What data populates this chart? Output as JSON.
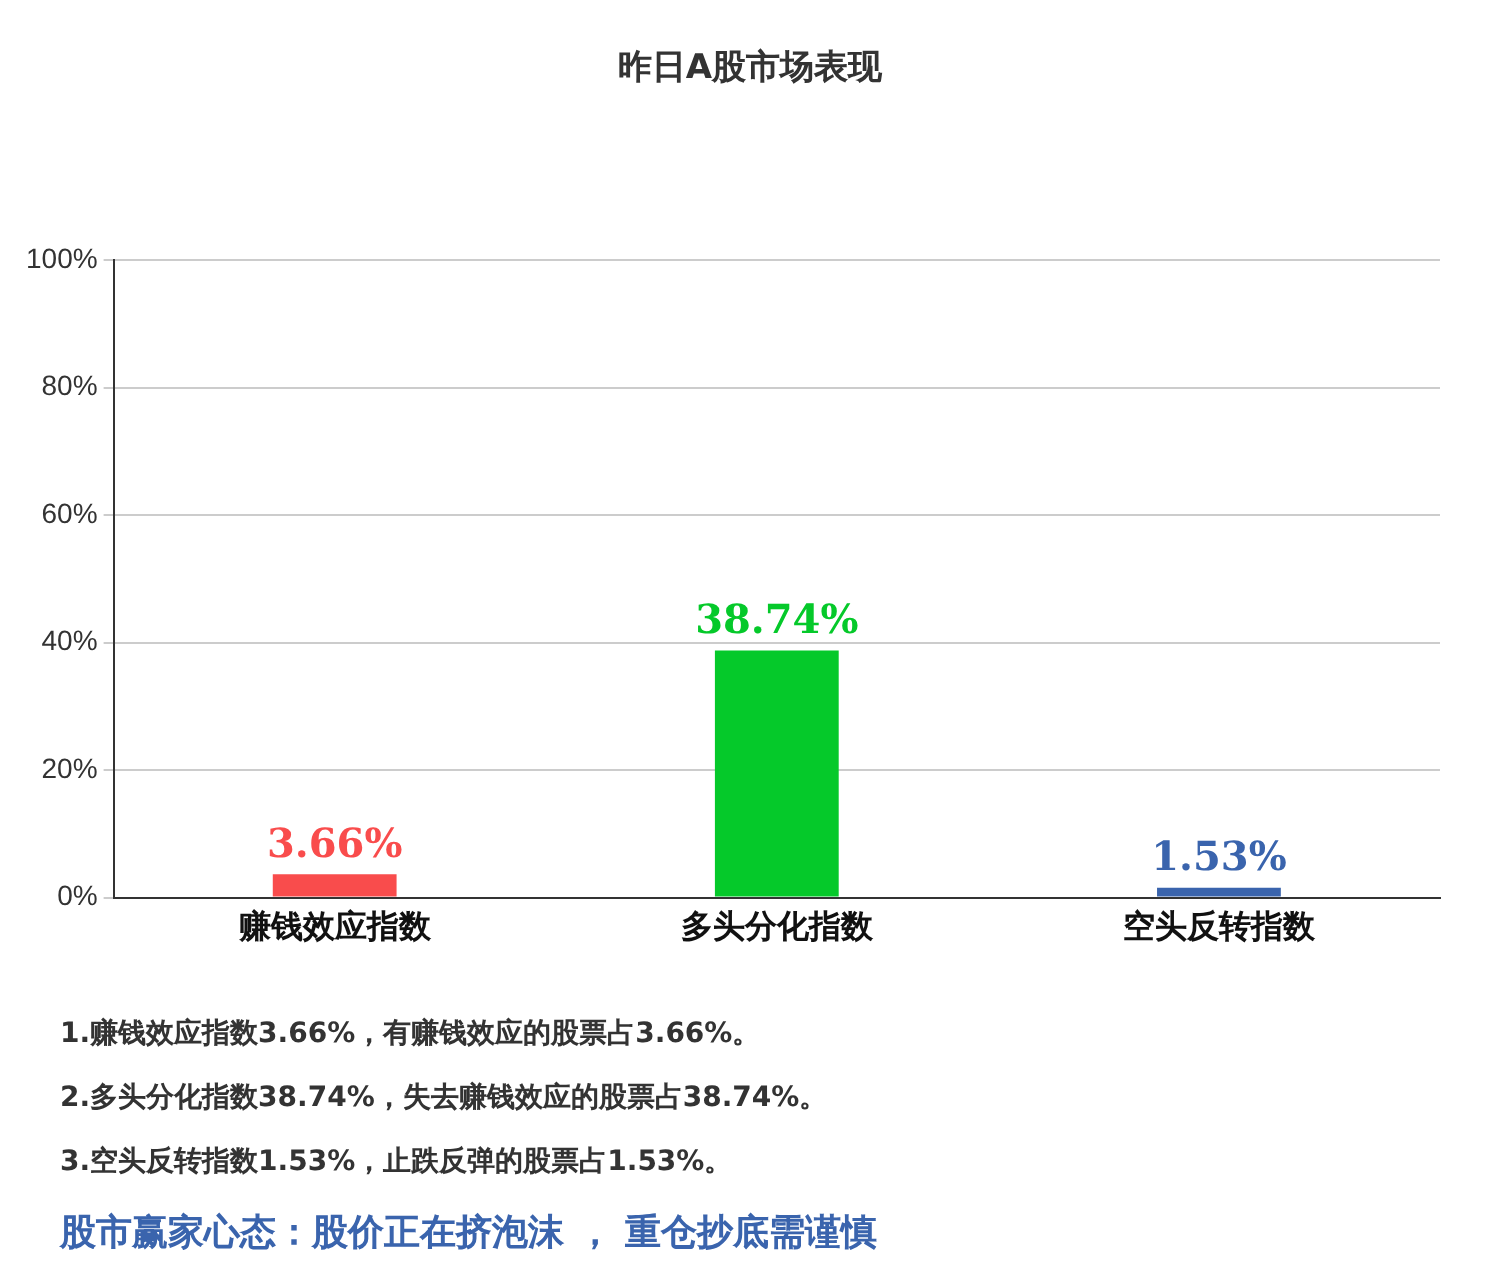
{
  "chart_data": {
    "type": "bar",
    "title": "昨日A股市场表现",
    "categories": [
      "赚钱效应指数",
      "多头分化指数",
      "空头反转指数"
    ],
    "values": [
      3.66,
      38.74,
      1.53
    ],
    "colors": [
      "#f94c4c",
      "#05c92a",
      "#3a64ad"
    ],
    "value_labels": [
      "3.66%",
      "38.74%",
      "1.53%"
    ],
    "ylim": [
      0,
      100
    ],
    "yticks": [
      {
        "value": 0,
        "label": "0%"
      },
      {
        "value": 20,
        "label": "20%"
      },
      {
        "value": 40,
        "label": "40%"
      },
      {
        "value": 60,
        "label": "60%"
      },
      {
        "value": 80,
        "label": "80%"
      },
      {
        "value": 100,
        "label": "100%"
      }
    ],
    "grid": "y",
    "legend": false,
    "annotations": [
      "1.赚钱效应指数3.66%，有赚钱效应的股票占3.66%。",
      "2.多头分化指数38.74%，失去赚钱效应的股票占38.74%。",
      "3.空头反转指数1.53%，止跌反弹的股票占1.53%。",
      "股市赢家心态：股价正在挤泡沫 ， 重仓抄底需谨慎"
    ]
  }
}
